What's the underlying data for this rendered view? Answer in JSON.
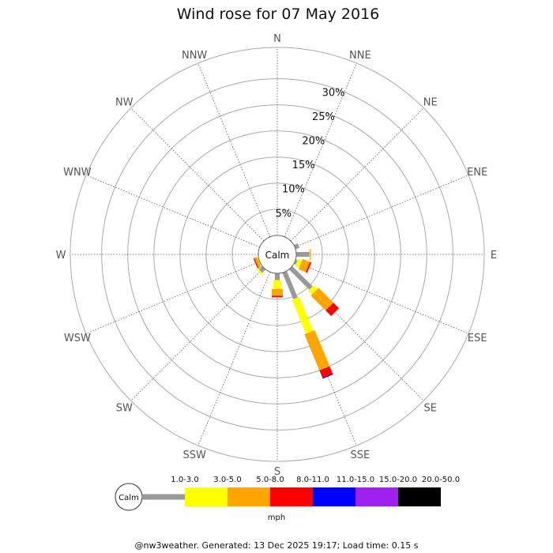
{
  "chart_data": {
    "type": "wind-rose",
    "title": "Wind rose for 07 May 2016",
    "directions": [
      "N",
      "NNE",
      "NE",
      "ENE",
      "E",
      "ESE",
      "SE",
      "SSE",
      "S",
      "SSW",
      "SW",
      "WSW",
      "W",
      "WNW",
      "NW",
      "NNW"
    ],
    "radial_ticks": [
      "5%",
      "10%",
      "15%",
      "20%",
      "25%",
      "30%"
    ],
    "radial_tick_values": [
      5,
      10,
      15,
      20,
      25,
      30
    ],
    "radial_max": 36,
    "calm_label": "Calm",
    "unit": "mph",
    "speed_bins": [
      {
        "label": "1.0-3.0",
        "color": "#999999"
      },
      {
        "label": "3.0-5.0",
        "color": "#ffff00"
      },
      {
        "label": "5.0-8.0",
        "color": "#ffa500"
      },
      {
        "label": "8.0-11.0",
        "color": "#ff0000"
      },
      {
        "label": "11.0-15.0",
        "color": "#0000ff"
      },
      {
        "label": "15.0-20.0",
        "color": "#a020f0"
      },
      {
        "label": "20.0-50.0",
        "color": "#000000"
      }
    ],
    "series": [
      {
        "direction": "ENE",
        "values": [
          0.8,
          0,
          0,
          0,
          0,
          0,
          0
        ]
      },
      {
        "direction": "E",
        "values": [
          2.5,
          0.1,
          0.2,
          0,
          0,
          0,
          0
        ]
      },
      {
        "direction": "ESE",
        "values": [
          0.4,
          0.8,
          1.5,
          0.3,
          0,
          0,
          0
        ]
      },
      {
        "direction": "SE",
        "values": [
          5.5,
          1.0,
          4.0,
          1.5,
          0,
          0,
          0
        ]
      },
      {
        "direction": "SSE",
        "values": [
          5.5,
          7.0,
          7.5,
          1.5,
          0.2,
          0,
          0
        ]
      },
      {
        "direction": "S",
        "values": [
          1.3,
          1.7,
          1.3,
          0.3,
          0,
          0,
          0
        ]
      },
      {
        "direction": "SW",
        "values": [
          0.9,
          0.3,
          0,
          0,
          0,
          0,
          0
        ]
      },
      {
        "direction": "WSW",
        "values": [
          0,
          0.2,
          0.5,
          0.2,
          0,
          0,
          0
        ]
      }
    ]
  },
  "footer": "@nw3weather. Generated: 13 Dec 2025 19:17; Load time: 0.15 s"
}
